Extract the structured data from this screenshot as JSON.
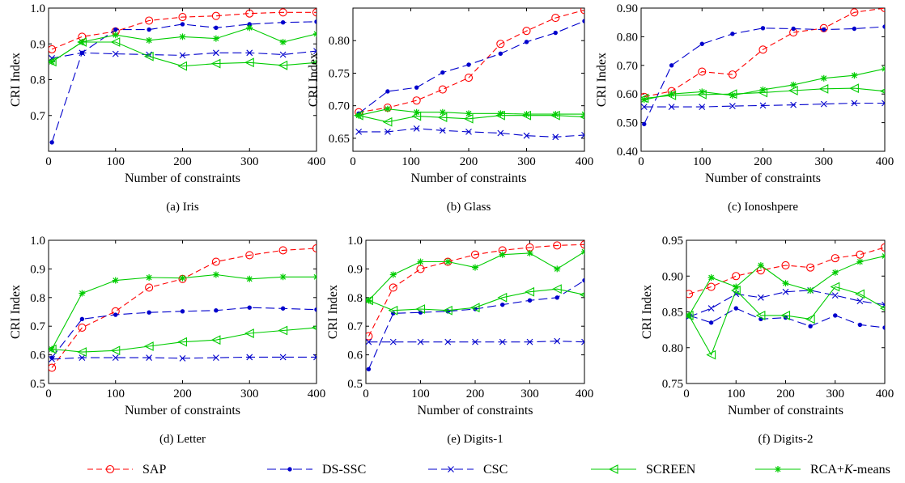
{
  "styles": {
    "SAP": {
      "color": "#ff0000",
      "dash": "7,4",
      "marker": "circle"
    },
    "DS-SSC": {
      "color": "#0000cc",
      "dash": "11,5",
      "marker": "dot"
    },
    "CSC": {
      "color": "#0000cc",
      "dash": "11,5",
      "marker": "x"
    },
    "SCREEN": {
      "color": "#00cc00",
      "dash": "",
      "marker": "triangle-left"
    },
    "RCA+K-means": {
      "color": "#00cc00",
      "dash": "",
      "marker": "star"
    }
  },
  "legend": [
    {
      "key": "SAP",
      "label": "SAP",
      "italic_part": ""
    },
    {
      "key": "DS-SSC",
      "label": "DS-SSC",
      "italic_part": ""
    },
    {
      "key": "CSC",
      "label": "CSC",
      "italic_part": ""
    },
    {
      "key": "SCREEN",
      "label": "SCREEN",
      "italic_part": ""
    },
    {
      "key": "RCA+K-means",
      "label_pre": "RCA+",
      "label_italic": "K",
      "label_post": "-means"
    }
  ],
  "chart_data": [
    {
      "type": "line",
      "caption": "(a) Iris",
      "xlabel": "Number of constraints",
      "ylabel": "CRI Index",
      "xlim": [
        0,
        400
      ],
      "ylim": [
        0.6,
        1.0
      ],
      "xticks": [
        0,
        100,
        200,
        300,
        400
      ],
      "xtick_labels": [
        "0",
        "100",
        "200",
        "300",
        "400"
      ],
      "yticks": [
        0.7,
        0.8,
        0.9,
        1.0
      ],
      "ytick_labels": [
        "0.7",
        "0.8",
        "0.9",
        "1.0"
      ],
      "x": [
        5,
        50,
        100,
        150,
        200,
        250,
        300,
        350,
        400
      ],
      "series": [
        {
          "name": "SAP",
          "values": [
            0.885,
            0.92,
            0.935,
            0.965,
            0.975,
            0.978,
            0.985,
            0.988,
            0.988
          ]
        },
        {
          "name": "DS-SSC",
          "values": [
            0.625,
            0.875,
            0.94,
            0.94,
            0.955,
            0.945,
            0.955,
            0.96,
            0.962
          ]
        },
        {
          "name": "CSC",
          "values": [
            0.86,
            0.875,
            0.872,
            0.87,
            0.868,
            0.875,
            0.875,
            0.87,
            0.88
          ]
        },
        {
          "name": "SCREEN",
          "values": [
            0.85,
            0.905,
            0.905,
            0.865,
            0.838,
            0.845,
            0.848,
            0.84,
            0.848
          ]
        },
        {
          "name": "RCA+K-means",
          "values": [
            0.85,
            0.905,
            0.925,
            0.91,
            0.92,
            0.915,
            0.945,
            0.905,
            0.928
          ]
        }
      ]
    },
    {
      "type": "line",
      "caption": "(b) Glass",
      "xlabel": "Number of constraints",
      "ylabel": "CRI Index",
      "xlim": [
        0,
        400
      ],
      "ylim": [
        0.63,
        0.85
      ],
      "xticks": [
        0,
        100,
        200,
        300,
        400
      ],
      "xtick_labels": [
        "0",
        "100",
        "200",
        "300",
        "400"
      ],
      "yticks": [
        0.65,
        0.7,
        0.75,
        0.8
      ],
      "ytick_labels": [
        "0.65",
        "0.70",
        "0.75",
        "0.80"
      ],
      "x": [
        10,
        60,
        110,
        155,
        200,
        255,
        300,
        350,
        400
      ],
      "series": [
        {
          "name": "SAP",
          "values": [
            0.69,
            0.697,
            0.708,
            0.725,
            0.743,
            0.795,
            0.815,
            0.835,
            0.847
          ]
        },
        {
          "name": "DS-SSC",
          "values": [
            0.688,
            0.722,
            0.728,
            0.751,
            0.763,
            0.78,
            0.798,
            0.812,
            0.83
          ]
        },
        {
          "name": "CSC",
          "values": [
            0.66,
            0.66,
            0.665,
            0.662,
            0.66,
            0.658,
            0.654,
            0.652,
            0.655
          ]
        },
        {
          "name": "SCREEN",
          "values": [
            0.685,
            0.675,
            0.684,
            0.682,
            0.68,
            0.685,
            0.685,
            0.685,
            0.683
          ]
        },
        {
          "name": "RCA+K-means",
          "values": [
            0.685,
            0.695,
            0.69,
            0.69,
            0.688,
            0.688,
            0.687,
            0.687,
            0.687
          ]
        }
      ]
    },
    {
      "type": "line",
      "caption": "(c) Ionoshpere",
      "xlabel": "Number of constraints",
      "ylabel": "CRI Index",
      "xlim": [
        0,
        400
      ],
      "ylim": [
        0.4,
        0.9
      ],
      "xticks": [
        0,
        100,
        200,
        300,
        400
      ],
      "xtick_labels": [
        "0",
        "100",
        "200",
        "300",
        "400"
      ],
      "yticks": [
        0.4,
        0.5,
        0.6,
        0.7,
        0.8,
        0.9
      ],
      "ytick_labels": [
        "0.40",
        "0.50",
        "0.60",
        "0.70",
        "0.80",
        "0.90"
      ],
      "x": [
        5,
        50,
        100,
        150,
        200,
        250,
        300,
        350,
        400
      ],
      "series": [
        {
          "name": "SAP",
          "values": [
            0.59,
            0.61,
            0.678,
            0.668,
            0.755,
            0.815,
            0.83,
            0.885,
            0.9
          ]
        },
        {
          "name": "DS-SSC",
          "values": [
            0.495,
            0.7,
            0.775,
            0.81,
            0.83,
            0.828,
            0.825,
            0.828,
            0.835
          ]
        },
        {
          "name": "CSC",
          "values": [
            0.555,
            0.555,
            0.555,
            0.558,
            0.56,
            0.562,
            0.565,
            0.568,
            0.568
          ]
        },
        {
          "name": "SCREEN",
          "values": [
            0.585,
            0.595,
            0.598,
            0.6,
            0.605,
            0.612,
            0.618,
            0.62,
            0.61
          ]
        },
        {
          "name": "RCA+K-means",
          "values": [
            0.58,
            0.6,
            0.608,
            0.595,
            0.615,
            0.632,
            0.655,
            0.665,
            0.688
          ]
        }
      ]
    },
    {
      "type": "line",
      "caption": "(d) Letter",
      "xlabel": "Number of constraints",
      "ylabel": "CRI Index",
      "xlim": [
        0,
        400
      ],
      "ylim": [
        0.5,
        1.0
      ],
      "xticks": [
        0,
        100,
        200,
        300,
        400
      ],
      "xtick_labels": [
        "0",
        "100",
        "200",
        "300",
        "400"
      ],
      "yticks": [
        0.5,
        0.6,
        0.7,
        0.8,
        0.9,
        1.0
      ],
      "ytick_labels": [
        "0.5",
        "0.6",
        "0.7",
        "0.8",
        "0.9",
        "1.0"
      ],
      "x": [
        5,
        50,
        100,
        150,
        200,
        250,
        300,
        350,
        400
      ],
      "series": [
        {
          "name": "SAP",
          "values": [
            0.555,
            0.695,
            0.752,
            0.835,
            0.865,
            0.925,
            0.948,
            0.965,
            0.972
          ]
        },
        {
          "name": "DS-SSC",
          "values": [
            0.59,
            0.725,
            0.74,
            0.748,
            0.752,
            0.755,
            0.765,
            0.762,
            0.758
          ]
        },
        {
          "name": "CSC",
          "values": [
            0.585,
            0.59,
            0.59,
            0.59,
            0.588,
            0.59,
            0.592,
            0.592,
            0.592
          ]
        },
        {
          "name": "SCREEN",
          "values": [
            0.62,
            0.61,
            0.615,
            0.63,
            0.645,
            0.652,
            0.675,
            0.685,
            0.695
          ]
        },
        {
          "name": "RCA+K-means",
          "values": [
            0.62,
            0.815,
            0.86,
            0.87,
            0.868,
            0.88,
            0.865,
            0.872,
            0.872
          ]
        }
      ]
    },
    {
      "type": "line",
      "caption": "(e) Digits-1",
      "xlabel": "Number of constraints",
      "ylabel": "CRI Index",
      "xlim": [
        0,
        400
      ],
      "ylim": [
        0.5,
        1.0
      ],
      "xticks": [
        0,
        100,
        200,
        300,
        400
      ],
      "xtick_labels": [
        "0",
        "100",
        "200",
        "300",
        "400"
      ],
      "yticks": [
        0.5,
        0.6,
        0.7,
        0.8,
        0.9,
        1.0
      ],
      "ytick_labels": [
        "0.5",
        "0.6",
        "0.7",
        "0.8",
        "0.9",
        "1.0"
      ],
      "x": [
        5,
        50,
        100,
        150,
        200,
        250,
        300,
        350,
        400
      ],
      "series": [
        {
          "name": "SAP",
          "values": [
            0.665,
            0.835,
            0.9,
            0.925,
            0.95,
            0.965,
            0.975,
            0.982,
            0.985
          ]
        },
        {
          "name": "DS-SSC",
          "values": [
            0.55,
            0.745,
            0.748,
            0.752,
            0.76,
            0.775,
            0.79,
            0.8,
            0.86
          ]
        },
        {
          "name": "CSC",
          "values": [
            0.645,
            0.645,
            0.645,
            0.645,
            0.645,
            0.645,
            0.645,
            0.648,
            0.645
          ]
        },
        {
          "name": "SCREEN",
          "values": [
            0.79,
            0.755,
            0.76,
            0.755,
            0.765,
            0.8,
            0.82,
            0.83,
            0.81
          ]
        },
        {
          "name": "RCA+K-means",
          "values": [
            0.79,
            0.88,
            0.925,
            0.925,
            0.905,
            0.95,
            0.955,
            0.9,
            0.96
          ]
        }
      ]
    },
    {
      "type": "line",
      "caption": "(f) Digits-2",
      "xlabel": "Number of constraints",
      "ylabel": "CRI Index",
      "xlim": [
        0,
        400
      ],
      "ylim": [
        0.75,
        0.95
      ],
      "xticks": [
        0,
        100,
        200,
        300,
        400
      ],
      "xtick_labels": [
        "0",
        "100",
        "200",
        "300",
        "400"
      ],
      "yticks": [
        0.75,
        0.8,
        0.85,
        0.9,
        0.95
      ],
      "ytick_labels": [
        "0.75",
        "0.80",
        "0.85",
        "0.90",
        "0.95"
      ],
      "x": [
        5,
        50,
        100,
        150,
        200,
        250,
        300,
        350,
        400
      ],
      "series": [
        {
          "name": "SAP",
          "values": [
            0.875,
            0.885,
            0.9,
            0.908,
            0.915,
            0.912,
            0.925,
            0.93,
            0.94
          ]
        },
        {
          "name": "DS-SSC",
          "values": [
            0.845,
            0.835,
            0.855,
            0.84,
            0.842,
            0.83,
            0.845,
            0.832,
            0.828
          ]
        },
        {
          "name": "CSC",
          "values": [
            0.843,
            0.855,
            0.875,
            0.87,
            0.878,
            0.88,
            0.873,
            0.865,
            0.86
          ]
        },
        {
          "name": "SCREEN",
          "values": [
            0.845,
            0.79,
            0.88,
            0.845,
            0.845,
            0.84,
            0.885,
            0.875,
            0.855
          ]
        },
        {
          "name": "RCA+K-means",
          "values": [
            0.845,
            0.898,
            0.885,
            0.915,
            0.89,
            0.88,
            0.905,
            0.92,
            0.928
          ]
        }
      ]
    }
  ]
}
